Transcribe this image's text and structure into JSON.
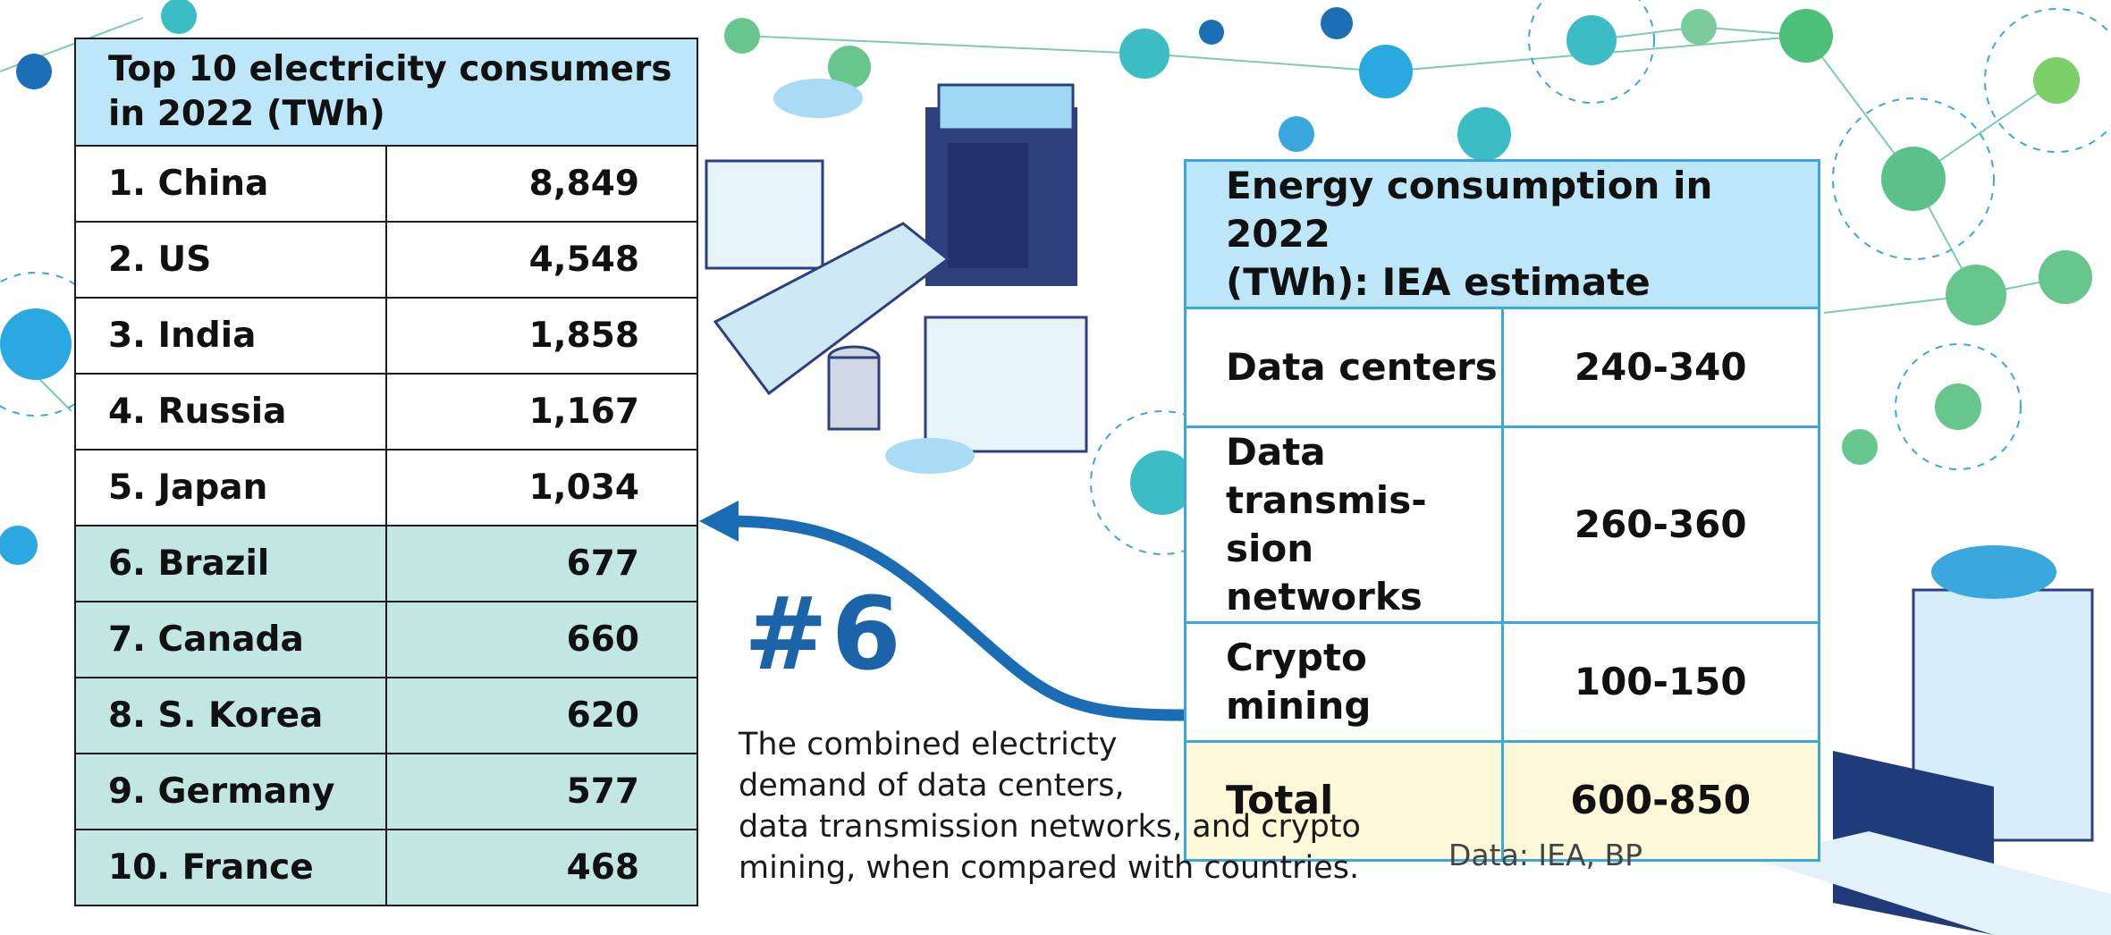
{
  "left_table": {
    "title": [
      "Top 10 electricity consumers",
      "in 2022 (TWh)"
    ],
    "rows": [
      [
        "1. China",
        "8,849"
      ],
      [
        "2. US",
        "4,548"
      ],
      [
        "3. India",
        "1,858"
      ],
      [
        "4. Russia",
        "1,167"
      ],
      [
        "5. Japan",
        "1,034"
      ],
      [
        "6. Brazil",
        "677"
      ],
      [
        "7. Canada",
        "660"
      ],
      [
        "8. S. Korea",
        "620"
      ],
      [
        "9. Germany",
        "577"
      ],
      [
        "10. France",
        "468"
      ]
    ]
  },
  "right_table": {
    "title": [
      "Energy consumption in 2022",
      "(TWh): IEA estimate"
    ],
    "rows": [
      [
        [
          "Data centers"
        ],
        "240-340"
      ],
      [
        [
          "Data transmis-",
          "sion networks"
        ],
        "260-360"
      ],
      [
        [
          "Crypto mining"
        ],
        "100-150"
      ],
      [
        [
          "Total"
        ],
        "600-850"
      ]
    ]
  },
  "callout": {
    "rank": "#6",
    "lines": [
      "The combined electricty",
      "demand of data centers,",
      "data transmission networks, and crypto",
      "mining, when compared with countries."
    ]
  },
  "source": "Data: IEA, BP"
}
